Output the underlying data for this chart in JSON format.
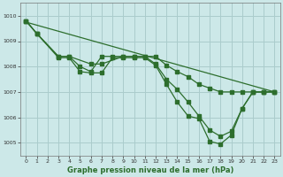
{
  "title": "Graphe pression niveau de la mer (hPa)",
  "bg_color": "#cce8e8",
  "grid_color": "#aacccc",
  "line_color": "#2d6e2d",
  "xlim": [
    -0.5,
    23.5
  ],
  "ylim": [
    1004.5,
    1010.5
  ],
  "yticks": [
    1005,
    1006,
    1007,
    1008,
    1009,
    1010
  ],
  "xticks": [
    0,
    1,
    2,
    3,
    4,
    5,
    6,
    7,
    8,
    9,
    10,
    11,
    12,
    13,
    14,
    15,
    16,
    17,
    18,
    19,
    20,
    21,
    22,
    23
  ],
  "xlabel_fontsize": 6.0,
  "tick_fontsize": 4.5,
  "series1_x": [
    0,
    1,
    3,
    4,
    5,
    6,
    7,
    8,
    9,
    10,
    11,
    12,
    13,
    14,
    15,
    16,
    17,
    18,
    19,
    20,
    21,
    22,
    23
  ],
  "series1_y": [
    1009.8,
    1009.3,
    1008.35,
    1008.35,
    1007.8,
    1007.75,
    1007.75,
    1008.35,
    1008.35,
    1008.35,
    1008.35,
    1008.05,
    1007.3,
    1006.6,
    1006.05,
    1005.95,
    1005.05,
    1004.95,
    1005.3,
    1006.35,
    1007.0,
    1007.0,
    1007.0
  ],
  "series2_x": [
    0,
    1,
    3,
    4,
    5,
    6,
    7,
    8,
    9,
    10,
    11,
    12,
    13,
    14,
    15,
    16,
    17,
    18,
    19,
    20,
    21,
    22,
    23
  ],
  "series2_y": [
    1009.8,
    1009.3,
    1008.4,
    1008.4,
    1008.0,
    1007.8,
    1008.4,
    1008.4,
    1008.4,
    1008.4,
    1008.4,
    1008.1,
    1007.5,
    1007.1,
    1006.6,
    1006.05,
    1005.5,
    1005.25,
    1005.45,
    1006.35,
    1007.0,
    1007.0,
    1007.0
  ],
  "series3_x": [
    0,
    1,
    3,
    4,
    6,
    7,
    9,
    10,
    11,
    12,
    13,
    14,
    15,
    16,
    17,
    18,
    19,
    20,
    21,
    22,
    23
  ],
  "series3_y": [
    1009.8,
    1009.3,
    1008.4,
    1008.4,
    1008.1,
    1008.1,
    1008.4,
    1008.4,
    1008.4,
    1008.4,
    1008.05,
    1007.8,
    1007.6,
    1007.3,
    1007.15,
    1007.0,
    1007.0,
    1007.0,
    1007.0,
    1007.0,
    1007.0
  ],
  "series4_x": [
    0,
    23
  ],
  "series4_y": [
    1009.75,
    1007.0
  ],
  "lw": 0.9,
  "ms": 2.2
}
